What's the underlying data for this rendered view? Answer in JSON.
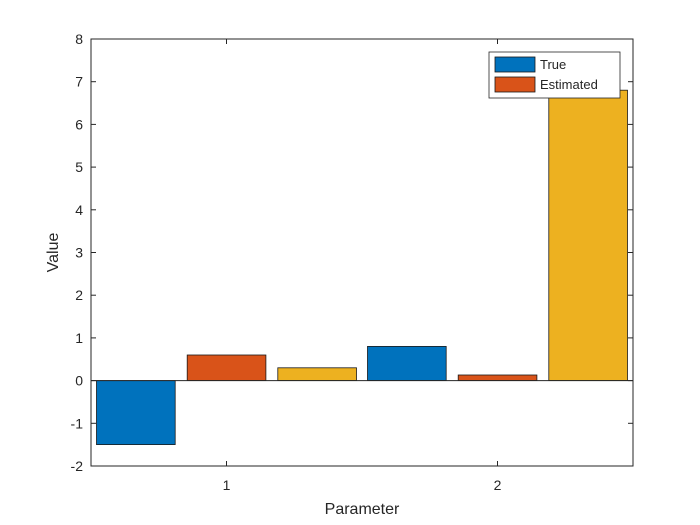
{
  "chart_data": {
    "type": "bar",
    "categories": [
      "1",
      "2"
    ],
    "series": [
      {
        "name": "True",
        "color": "#0072BD",
        "values": [
          -1.5,
          0.8
        ]
      },
      {
        "name": "Estimated",
        "color": "#D95319",
        "values": [
          0.6,
          0.13
        ]
      },
      {
        "color": "#EDB120",
        "values": [
          0.3,
          6.8
        ]
      }
    ],
    "xlabel": "Parameter",
    "ylabel": "Value",
    "ylim": [
      -2,
      8
    ],
    "yticks": [
      -2,
      -1,
      0,
      1,
      2,
      3,
      4,
      5,
      6,
      7,
      8
    ],
    "grid": false,
    "legend_position": "top-right"
  }
}
